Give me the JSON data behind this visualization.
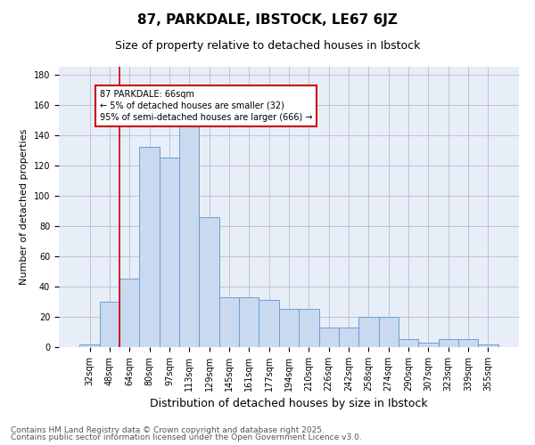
{
  "title1": "87, PARKDALE, IBSTOCK, LE67 6JZ",
  "title2": "Size of property relative to detached houses in Ibstock",
  "xlabel": "Distribution of detached houses by size in Ibstock",
  "ylabel": "Number of detached properties",
  "categories": [
    "32sqm",
    "48sqm",
    "64sqm",
    "80sqm",
    "97sqm",
    "113sqm",
    "129sqm",
    "145sqm",
    "161sqm",
    "177sqm",
    "194sqm",
    "210sqm",
    "226sqm",
    "242sqm",
    "258sqm",
    "274sqm",
    "290sqm",
    "307sqm",
    "323sqm",
    "339sqm",
    "355sqm"
  ],
  "values": [
    2,
    30,
    45,
    132,
    125,
    150,
    86,
    33,
    33,
    31,
    25,
    25,
    13,
    13,
    20,
    20,
    5,
    3,
    5,
    5,
    2
  ],
  "bar_color": "#c9d9f0",
  "bar_edge_color": "#6b9fd4",
  "vline_x_index": 2,
  "vline_color": "#cc0000",
  "ylim": [
    0,
    185
  ],
  "yticks": [
    0,
    20,
    40,
    60,
    80,
    100,
    120,
    140,
    160,
    180
  ],
  "annotation_line1": "87 PARKDALE: 66sqm",
  "annotation_line2": "← 5% of detached houses are smaller (32)",
  "annotation_line3": "95% of semi-detached houses are larger (666) →",
  "annotation_box_edgecolor": "#cc0000",
  "footer1": "Contains HM Land Registry data © Crown copyright and database right 2025.",
  "footer2": "Contains public sector information licensed under the Open Government Licence v3.0.",
  "bg_color": "#e8eef8",
  "grid_color": "#bbbbcc",
  "title1_fontsize": 11,
  "title2_fontsize": 9,
  "xlabel_fontsize": 9,
  "ylabel_fontsize": 8,
  "tick_fontsize": 7,
  "annotation_fontsize": 7,
  "footer_fontsize": 6.5
}
